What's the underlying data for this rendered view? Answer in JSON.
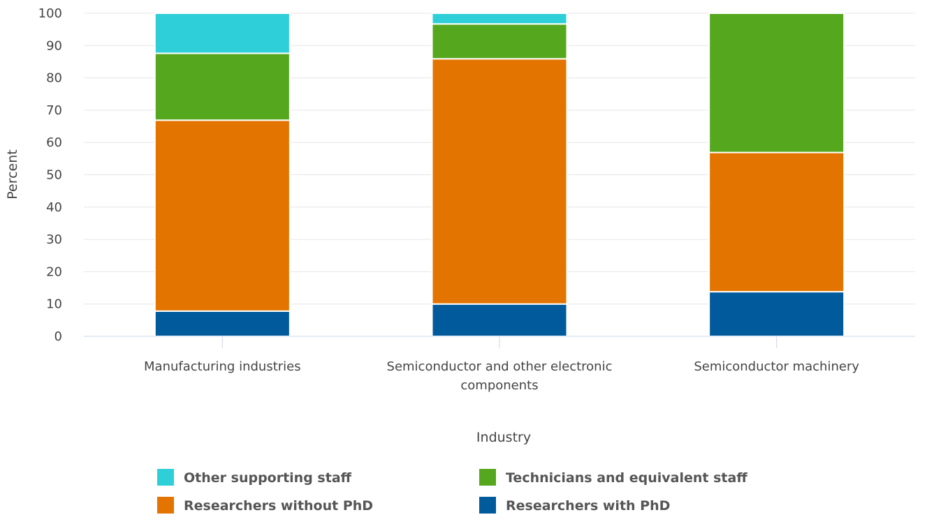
{
  "chart_data": {
    "type": "bar",
    "stacked": true,
    "ylabel": "Percent",
    "xlabel": "Industry",
    "ylim": [
      0,
      100
    ],
    "yticks": [
      0,
      10,
      20,
      30,
      40,
      50,
      60,
      70,
      80,
      90,
      100
    ],
    "grid": true,
    "legend_position": "bottom",
    "categories": [
      [
        "Manufacturing industries"
      ],
      [
        "Semiconductor and other electronic",
        "components"
      ],
      [
        "Semiconductor machinery"
      ]
    ],
    "series": [
      {
        "name": "Researchers with PhD",
        "color": "#005a9c",
        "values": [
          7.8,
          10,
          13.8
        ]
      },
      {
        "name": "Researchers without PhD",
        "color": "#e37400",
        "values": [
          59.1,
          75.9,
          43.1
        ]
      },
      {
        "name": "Technicians and equivalent staff",
        "color": "#55a81e",
        "values": [
          20.7,
          10.8,
          43.1
        ]
      },
      {
        "name": "Other supporting staff",
        "color": "#2ecfd8",
        "values": [
          12.4,
          3.3,
          0
        ]
      }
    ],
    "legend_order": [
      "Other supporting staff",
      "Technicians and equivalent staff",
      "Researchers without PhD",
      "Researchers with PhD"
    ]
  }
}
